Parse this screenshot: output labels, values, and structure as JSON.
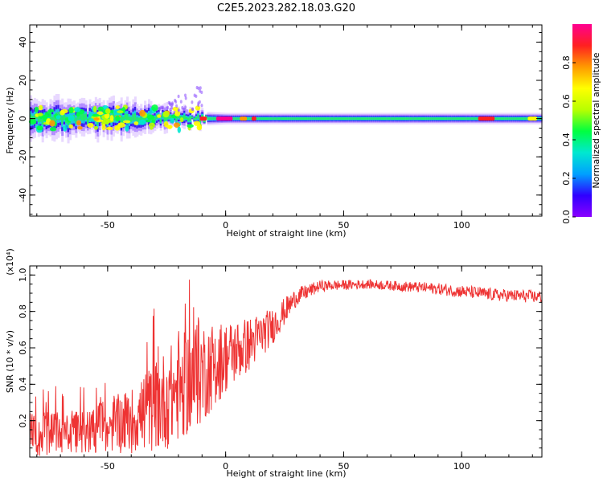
{
  "figure_title": "C2E5.2023.282.18.03.G20",
  "colors": {
    "snr_line": "#ee3333",
    "axis": "#000000",
    "colorbar": [
      "#8a00ff",
      "#2f00ff",
      "#00a0ff",
      "#00e8d0",
      "#00ff40",
      "#b8ff00",
      "#ffff00",
      "#ff9a00",
      "#ff2020",
      "#ff0090"
    ]
  },
  "chart_data": [
    {
      "type": "heatmap",
      "xlabel": "Height of straight line (km)",
      "ylabel": "Frequency (Hz)",
      "xlim": [
        -83,
        134
      ],
      "ylim": [
        -51,
        49
      ],
      "xticks": [
        -50,
        0,
        50,
        100
      ],
      "yticks": [
        -40,
        -20,
        0,
        20,
        40
      ],
      "colorbar": {
        "label": "Normalized spectral amplitude",
        "range": [
          0,
          1
        ],
        "ticks": [
          0.0,
          0.2,
          0.4,
          0.6,
          0.8
        ]
      },
      "band_half_width_hz": [
        {
          "x": -83,
          "halfwidth": 10
        },
        {
          "x": -40,
          "halfwidth": 9
        },
        {
          "x": -15,
          "halfwidth": 4
        },
        {
          "x": 0,
          "halfwidth": 3
        },
        {
          "x": 134,
          "halfwidth": 3
        }
      ],
      "peak_segments": [
        {
          "x0": -11,
          "x1": -8,
          "level": 0.9
        },
        {
          "x0": -4,
          "x1": 3,
          "level": 0.95
        },
        {
          "x0": 6,
          "x1": 9,
          "level": 0.8
        },
        {
          "x0": 11,
          "x1": 13,
          "level": 0.85
        },
        {
          "x0": 107,
          "x1": 114,
          "level": 0.85
        },
        {
          "x0": 128,
          "x1": 132,
          "level": 0.7
        }
      ]
    },
    {
      "type": "line",
      "xlabel": "Height of straight line (km)",
      "ylabel": "SNR (10 * v/v)",
      "scale_note": "(x10⁴)",
      "xlim": [
        -83,
        134
      ],
      "ylim": [
        0,
        1.05
      ],
      "xticks": [
        -50,
        0,
        50,
        100
      ],
      "yticks": [
        0.2,
        0.4,
        0.6,
        0.8,
        1.0
      ],
      "series": [
        {
          "trend": [
            {
              "x": -83,
              "mean": 0.12,
              "spread": 0.12
            },
            {
              "x": -60,
              "mean": 0.14,
              "spread": 0.12
            },
            {
              "x": -40,
              "mean": 0.2,
              "spread": 0.18
            },
            {
              "x": -25,
              "mean": 0.32,
              "spread": 0.28
            },
            {
              "x": -12,
              "mean": 0.45,
              "spread": 0.3
            },
            {
              "x": 0,
              "mean": 0.55,
              "spread": 0.2
            },
            {
              "x": 10,
              "mean": 0.62,
              "spread": 0.15
            },
            {
              "x": 20,
              "mean": 0.72,
              "spread": 0.1
            },
            {
              "x": 30,
              "mean": 0.88,
              "spread": 0.05
            },
            {
              "x": 40,
              "mean": 0.94,
              "spread": 0.03
            },
            {
              "x": 60,
              "mean": 0.95,
              "spread": 0.025
            },
            {
              "x": 85,
              "mean": 0.93,
              "spread": 0.03
            },
            {
              "x": 100,
              "mean": 0.91,
              "spread": 0.035
            },
            {
              "x": 115,
              "mean": 0.89,
              "spread": 0.035
            },
            {
              "x": 134,
              "mean": 0.88,
              "spread": 0.035
            }
          ]
        }
      ]
    }
  ]
}
